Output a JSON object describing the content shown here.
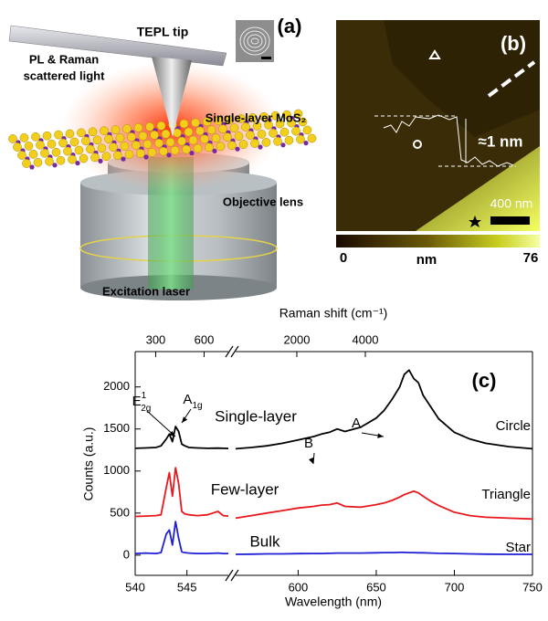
{
  "panel_a": {
    "label": "(a)",
    "tip": "TEPL tip",
    "scattered_light": [
      "PL & Raman",
      "scattered light"
    ],
    "sample": "Single-layer MoS₂",
    "objective": "Objective lens",
    "laser": "Excitation laser"
  },
  "panel_b": {
    "label": "(b)",
    "height_step": "≈1 nm",
    "scale_bar": "400 nm",
    "colorbar": {
      "lim": [
        0,
        76
      ],
      "unit": "nm"
    }
  },
  "chart_data": {
    "type": "line",
    "panel_label": "(c)",
    "xlabel": "Wavelength (nm)",
    "ylabel": "Counts (a.u.)",
    "x2label": "Raman shift (cm⁻¹)",
    "xlim": [
      [
        540,
        549
      ],
      [
        560,
        750
      ]
    ],
    "xticks": [
      540,
      545,
      600,
      650,
      700,
      750
    ],
    "x2lim": [
      [
        173,
        750
      ],
      [
        213,
        8880
      ]
    ],
    "x2ticks": [
      300,
      600,
      2000,
      4000
    ],
    "ylim": [
      -240,
      2420
    ],
    "yticks": [
      0,
      500,
      1000,
      1500,
      2000
    ],
    "peak_labels": [
      {
        "text": "E",
        "sub": "2g",
        "sup": "1"
      },
      {
        "text": "A",
        "sub": "1g"
      },
      {
        "text": "B"
      },
      {
        "text": "A"
      }
    ],
    "x": [
      540,
      541,
      542,
      542.5,
      543,
      543.3,
      543.6,
      543.9,
      544.2,
      544.5,
      544.8,
      545.2,
      546,
      547,
      548,
      548.5,
      549,
      554,
      560,
      570,
      580,
      590,
      600,
      610,
      615,
      620,
      625,
      630,
      640,
      650,
      655,
      660,
      665,
      668,
      671,
      674,
      677,
      680,
      685,
      690,
      700,
      710,
      720,
      735,
      750
    ],
    "series": [
      {
        "name": "Single-layer",
        "location": "Circle",
        "color": "#000000",
        "values": [
          1270,
          1275,
          1280,
          1300,
          1380,
          1440,
          1350,
          1530,
          1470,
          1320,
          1300,
          1280,
          1275,
          1270,
          1272,
          1270,
          1268,
          null,
          1265,
          1280,
          1300,
          1330,
          1370,
          1410,
          1440,
          1460,
          1500,
          1470,
          1520,
          1630,
          1720,
          1850,
          2000,
          2150,
          2200,
          2100,
          2050,
          1900,
          1760,
          1620,
          1460,
          1380,
          1330,
          1290,
          1265
        ]
      },
      {
        "name": "Few-layer",
        "location": "Triangle",
        "color": "#e8191d",
        "values": [
          460,
          465,
          470,
          480,
          800,
          980,
          700,
          1040,
          850,
          520,
          490,
          480,
          470,
          480,
          520,
          470,
          465,
          null,
          440,
          470,
          500,
          530,
          560,
          580,
          595,
          600,
          620,
          580,
          570,
          600,
          620,
          650,
          690,
          720,
          740,
          760,
          740,
          700,
          640,
          590,
          510,
          470,
          450,
          440,
          430
        ]
      },
      {
        "name": "Bulk",
        "location": "Star",
        "color": "#1f1fd6",
        "values": [
          20,
          25,
          20,
          30,
          250,
          300,
          120,
          400,
          200,
          40,
          30,
          25,
          20,
          20,
          25,
          20,
          20,
          null,
          10,
          12,
          15,
          15,
          18,
          20,
          20,
          22,
          25,
          25,
          25,
          28,
          30,
          30,
          32,
          32,
          30,
          30,
          28,
          28,
          25,
          22,
          20,
          15,
          12,
          10,
          10
        ]
      }
    ]
  }
}
